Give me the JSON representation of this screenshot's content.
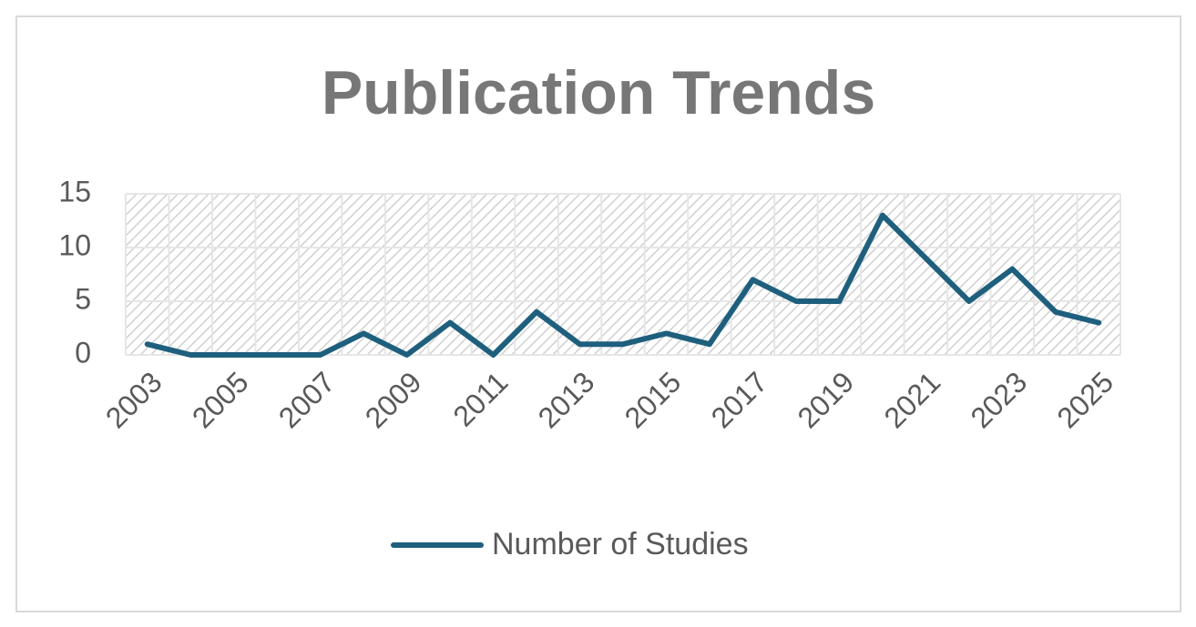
{
  "chart_data": {
    "type": "line",
    "title": "Publication Trends",
    "categories": [
      "2003",
      null,
      "2005",
      null,
      "2007",
      null,
      "2009",
      null,
      "2011",
      null,
      "2013",
      null,
      "2015",
      null,
      "2017",
      null,
      "2019",
      null,
      "2021",
      null,
      "2023",
      null,
      "2025"
    ],
    "series": [
      {
        "name": "Number of Studies",
        "color": "#1f5f7e",
        "values": [
          1,
          0,
          0,
          0,
          0,
          2,
          0,
          3,
          0,
          4,
          1,
          1,
          2,
          1,
          7,
          5,
          5,
          13,
          9,
          5,
          8,
          4,
          3
        ]
      }
    ],
    "ylim": [
      0,
      15
    ],
    "yticks": [
      0,
      5,
      10,
      15
    ],
    "grid": true,
    "legend": "bottom"
  }
}
